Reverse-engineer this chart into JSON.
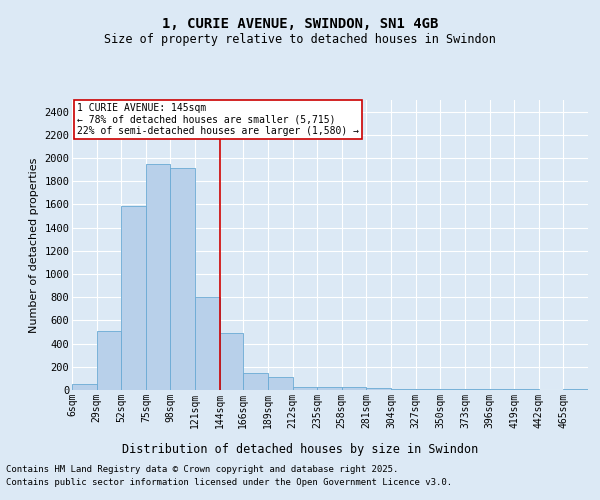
{
  "title1": "1, CURIE AVENUE, SWINDON, SN1 4GB",
  "title2": "Size of property relative to detached houses in Swindon",
  "xlabel": "Distribution of detached houses by size in Swindon",
  "ylabel": "Number of detached properties",
  "footnote1": "Contains HM Land Registry data © Crown copyright and database right 2025.",
  "footnote2": "Contains public sector information licensed under the Open Government Licence v3.0.",
  "annotation_line1": "1 CURIE AVENUE: 145sqm",
  "annotation_line2": "← 78% of detached houses are smaller (5,715)",
  "annotation_line3": "22% of semi-detached houses are larger (1,580) →",
  "bar_color": "#b8d0ea",
  "bar_edge_color": "#6aaad4",
  "background_color": "#dce9f5",
  "grid_color": "#ffffff",
  "vline_color": "#cc0000",
  "vline_x": 144,
  "annotation_box_color": "#cc0000",
  "categories": [
    "6sqm",
    "29sqm",
    "52sqm",
    "75sqm",
    "98sqm",
    "121sqm",
    "144sqm",
    "166sqm",
    "189sqm",
    "212sqm",
    "235sqm",
    "258sqm",
    "281sqm",
    "304sqm",
    "327sqm",
    "350sqm",
    "373sqm",
    "396sqm",
    "419sqm",
    "442sqm",
    "465sqm"
  ],
  "bin_edges": [
    6,
    29,
    52,
    75,
    98,
    121,
    144,
    166,
    189,
    212,
    235,
    258,
    281,
    304,
    327,
    350,
    373,
    396,
    419,
    442,
    465
  ],
  "values": [
    50,
    510,
    1590,
    1950,
    1910,
    800,
    490,
    150,
    110,
    30,
    25,
    25,
    20,
    5,
    5,
    5,
    5,
    5,
    5,
    0,
    5
  ],
  "ylim": [
    0,
    2500
  ],
  "yticks": [
    0,
    200,
    400,
    600,
    800,
    1000,
    1200,
    1400,
    1600,
    1800,
    2000,
    2200,
    2400
  ]
}
